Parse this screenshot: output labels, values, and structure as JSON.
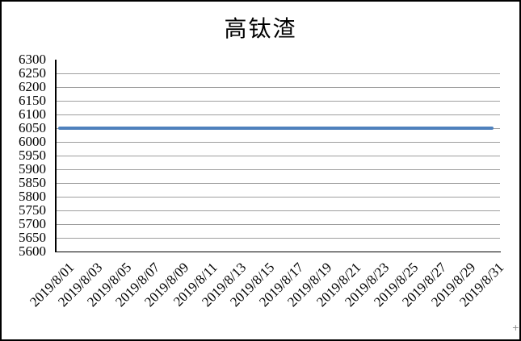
{
  "chart_data": {
    "type": "line",
    "title": "高钛渣",
    "categories": [
      "2019/8/01",
      "2019/8/03",
      "2019/8/05",
      "2019/8/07",
      "2019/8/09",
      "2019/8/11",
      "2019/8/13",
      "2019/8/15",
      "2019/8/17",
      "2019/8/19",
      "2019/8/21",
      "2019/8/23",
      "2019/8/25",
      "2019/8/27",
      "2019/8/29",
      "2019/8/31"
    ],
    "series": [
      {
        "name": "高钛渣",
        "values": [
          6050,
          6050,
          6050,
          6050,
          6050,
          6050,
          6050,
          6050,
          6050,
          6050,
          6050,
          6050,
          6050,
          6050,
          6050,
          6050
        ]
      }
    ],
    "xlabel": "",
    "ylabel": "",
    "ylim": [
      5600,
      6300
    ],
    "ytick_step": 50,
    "yticks": [
      6300,
      6250,
      6200,
      6150,
      6100,
      6050,
      6000,
      5950,
      5900,
      5850,
      5800,
      5750,
      5700,
      5650,
      5600
    ],
    "x_total_days": 31,
    "grid": "horizontal",
    "legend_position": "none",
    "colors": {
      "line": "#4F81BD",
      "gridline": "#9E9E9E",
      "axis": "#000000",
      "text": "#000000",
      "border": "#000000",
      "background": "#FFFFFF"
    }
  },
  "corner_mark": "+"
}
